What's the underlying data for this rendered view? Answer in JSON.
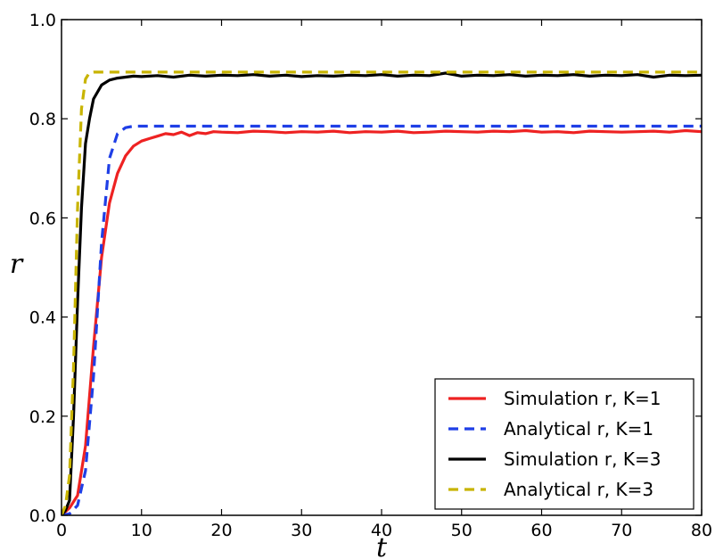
{
  "chart_data": {
    "type": "line",
    "title": "",
    "xlabel": "t",
    "ylabel": "r",
    "xlim": [
      0,
      80
    ],
    "ylim": [
      0.0,
      1.0
    ],
    "xticks": [
      0,
      10,
      20,
      30,
      40,
      50,
      60,
      70,
      80
    ],
    "yticks": [
      "0.0",
      "0.2",
      "0.4",
      "0.6",
      "0.8",
      "1.0"
    ],
    "grid": false,
    "legend_position": "bottom-right",
    "series": [
      {
        "name": "Simulation r, K=1",
        "color": "#ee2222",
        "style": "solid",
        "x": [
          0,
          1,
          2,
          3,
          4,
          5,
          6,
          7,
          8,
          9,
          10,
          11,
          12,
          13,
          14,
          15,
          16,
          17,
          18,
          19,
          20,
          22,
          24,
          26,
          28,
          30,
          32,
          34,
          36,
          38,
          40,
          42,
          44,
          46,
          48,
          50,
          52,
          54,
          56,
          58,
          60,
          62,
          64,
          66,
          68,
          70,
          72,
          74,
          76,
          78,
          80
        ],
        "y": [
          0.0,
          0.015,
          0.04,
          0.14,
          0.34,
          0.52,
          0.63,
          0.69,
          0.725,
          0.745,
          0.755,
          0.76,
          0.765,
          0.77,
          0.768,
          0.773,
          0.766,
          0.772,
          0.77,
          0.774,
          0.773,
          0.772,
          0.775,
          0.774,
          0.772,
          0.774,
          0.773,
          0.775,
          0.772,
          0.774,
          0.773,
          0.775,
          0.772,
          0.773,
          0.775,
          0.774,
          0.773,
          0.775,
          0.774,
          0.776,
          0.773,
          0.774,
          0.772,
          0.775,
          0.774,
          0.773,
          0.774,
          0.775,
          0.773,
          0.776,
          0.774
        ]
      },
      {
        "name": "Analytical r, K=1",
        "color": "#1f3fe6",
        "style": "dashed",
        "x": [
          0,
          1,
          2,
          3,
          4,
          5,
          6,
          7,
          8,
          9,
          10,
          12,
          15,
          20,
          30,
          40,
          50,
          60,
          70,
          80
        ],
        "y": [
          0.0,
          0.003,
          0.02,
          0.09,
          0.28,
          0.55,
          0.72,
          0.77,
          0.782,
          0.785,
          0.785,
          0.785,
          0.785,
          0.785,
          0.785,
          0.785,
          0.785,
          0.785,
          0.785,
          0.785
        ]
      },
      {
        "name": "Simulation r, K=3",
        "color": "#000000",
        "style": "solid",
        "x": [
          0,
          0.5,
          1,
          1.5,
          2,
          2.5,
          3,
          3.5,
          4,
          5,
          6,
          7,
          8,
          9,
          10,
          12,
          14,
          16,
          18,
          20,
          22,
          24,
          26,
          28,
          30,
          32,
          34,
          36,
          38,
          40,
          42,
          44,
          46,
          48,
          50,
          52,
          54,
          56,
          58,
          60,
          62,
          64,
          66,
          68,
          70,
          72,
          74,
          76,
          78,
          80
        ],
        "y": [
          0.0,
          0.01,
          0.03,
          0.2,
          0.43,
          0.62,
          0.75,
          0.8,
          0.84,
          0.868,
          0.878,
          0.882,
          0.884,
          0.886,
          0.885,
          0.887,
          0.884,
          0.888,
          0.886,
          0.888,
          0.887,
          0.889,
          0.886,
          0.888,
          0.885,
          0.887,
          0.886,
          0.888,
          0.887,
          0.889,
          0.886,
          0.888,
          0.887,
          0.892,
          0.886,
          0.888,
          0.887,
          0.889,
          0.886,
          0.888,
          0.887,
          0.889,
          0.886,
          0.888,
          0.887,
          0.889,
          0.884,
          0.888,
          0.887,
          0.888
        ]
      },
      {
        "name": "Analytical r, K=3",
        "color": "#c8b400",
        "style": "dashed",
        "x": [
          0,
          0.5,
          1,
          1.5,
          2,
          2.5,
          3,
          3.5,
          4,
          5,
          10,
          20,
          30,
          40,
          50,
          60,
          70,
          80
        ],
        "y": [
          0.0,
          0.02,
          0.08,
          0.3,
          0.62,
          0.82,
          0.88,
          0.893,
          0.894,
          0.894,
          0.894,
          0.894,
          0.894,
          0.894,
          0.894,
          0.894,
          0.894,
          0.894
        ]
      }
    ]
  }
}
